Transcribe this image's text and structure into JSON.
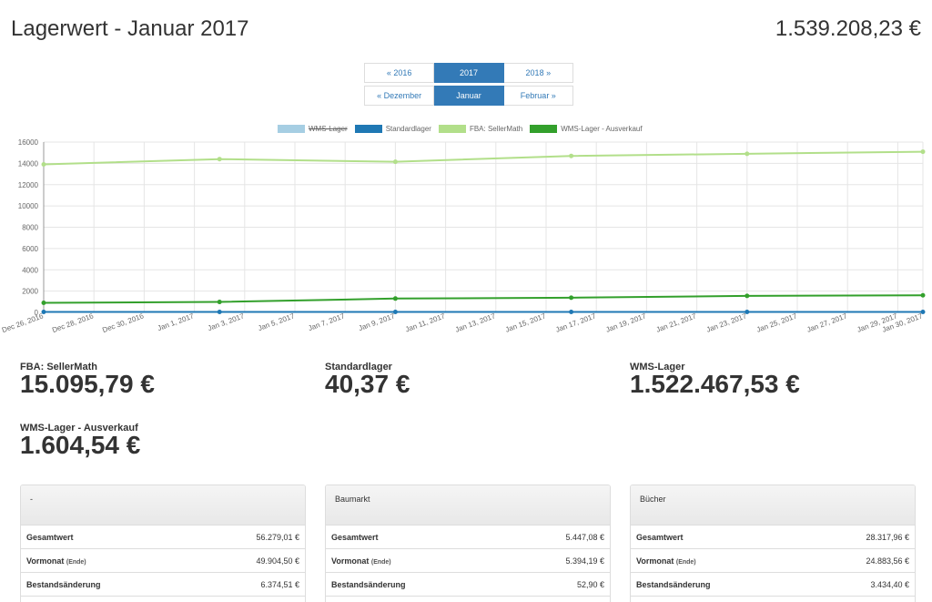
{
  "header": {
    "title": "Lagerwert - Januar 2017",
    "total": "1.539.208,23 €"
  },
  "year_pager": {
    "prev": "« 2016",
    "current": "2017",
    "next": "2018 »"
  },
  "month_pager": {
    "prev": "« Dezember",
    "current": "Januar",
    "next": "Februar »"
  },
  "legend": [
    {
      "label": "WMS-Lager",
      "color": "#a6cee3",
      "hidden": true
    },
    {
      "label": "Standardlager",
      "color": "#1f78b4",
      "hidden": false
    },
    {
      "label": "FBA: SellerMath",
      "color": "#b2df8a",
      "hidden": false
    },
    {
      "label": "WMS-Lager - Ausverkauf",
      "color": "#33a02c",
      "hidden": false
    }
  ],
  "chart_data": {
    "type": "line",
    "ylim": [
      0,
      16000
    ],
    "y_ticks": [
      "0",
      "2000",
      "4000",
      "6000",
      "8000",
      "10000",
      "12000",
      "14000",
      "16000"
    ],
    "x_ticks": [
      "Dec 26, 2016",
      "Dec 28, 2016",
      "Dec 30, 2016",
      "Jan 1, 2017",
      "Jan 3, 2017",
      "Jan 5, 2017",
      "Jan 7, 2017",
      "Jan 9, 2017",
      "Jan 11, 2017",
      "Jan 13, 2017",
      "Jan 15, 2017",
      "Jan 17, 2017",
      "Jan 19, 2017",
      "Jan 21, 2017",
      "Jan 23, 2017",
      "Jan 25, 2017",
      "Jan 27, 2017",
      "Jan 29, 2017",
      "Jan 30, 2017"
    ],
    "series": [
      {
        "name": "Standardlager",
        "color": "#1f78b4",
        "points": [
          [
            "Dec 26, 2016",
            40
          ],
          [
            "Jan 2, 2017",
            40
          ],
          [
            "Jan 9, 2017",
            40
          ],
          [
            "Jan 16, 2017",
            40
          ],
          [
            "Jan 23, 2017",
            40
          ],
          [
            "Jan 30, 2017",
            40
          ]
        ]
      },
      {
        "name": "FBA: SellerMath",
        "color": "#b2df8a",
        "points": [
          [
            "Dec 26, 2016",
            13900
          ],
          [
            "Jan 2, 2017",
            14400
          ],
          [
            "Jan 9, 2017",
            14150
          ],
          [
            "Jan 16, 2017",
            14700
          ],
          [
            "Jan 23, 2017",
            14900
          ],
          [
            "Jan 30, 2017",
            15095
          ]
        ]
      },
      {
        "name": "WMS-Lager - Ausverkauf",
        "color": "#33a02c",
        "points": [
          [
            "Dec 26, 2016",
            900
          ],
          [
            "Jan 2, 2017",
            980
          ],
          [
            "Jan 9, 2017",
            1300
          ],
          [
            "Jan 16, 2017",
            1380
          ],
          [
            "Jan 23, 2017",
            1550
          ],
          [
            "Jan 30, 2017",
            1604
          ]
        ]
      }
    ]
  },
  "stats": [
    {
      "label": "FBA: SellerMath",
      "value": "15.095,79 €"
    },
    {
      "label": "Standardlager",
      "value": "40,37 €"
    },
    {
      "label": "WMS-Lager",
      "value": "1.522.467,53 €"
    },
    {
      "label": "WMS-Lager - Ausverkauf",
      "value": "1.604,54 €"
    }
  ],
  "row_labels": {
    "total": "Gesamtwert",
    "prev": "Vormonat",
    "prev_note": "(Ende)",
    "change": "Bestandsänderung"
  },
  "panels": [
    {
      "title": "-",
      "total": "56.279,01 €",
      "prev": "49.904,50 €",
      "change": "6.374,51 €"
    },
    {
      "title": "Baumarkt",
      "total": "5.447,08 €",
      "prev": "5.394,19 €",
      "change": "52,90 €"
    },
    {
      "title": "Bücher",
      "total": "28.317,96 €",
      "prev": "24.883,56 €",
      "change": "3.434,40 €"
    }
  ]
}
